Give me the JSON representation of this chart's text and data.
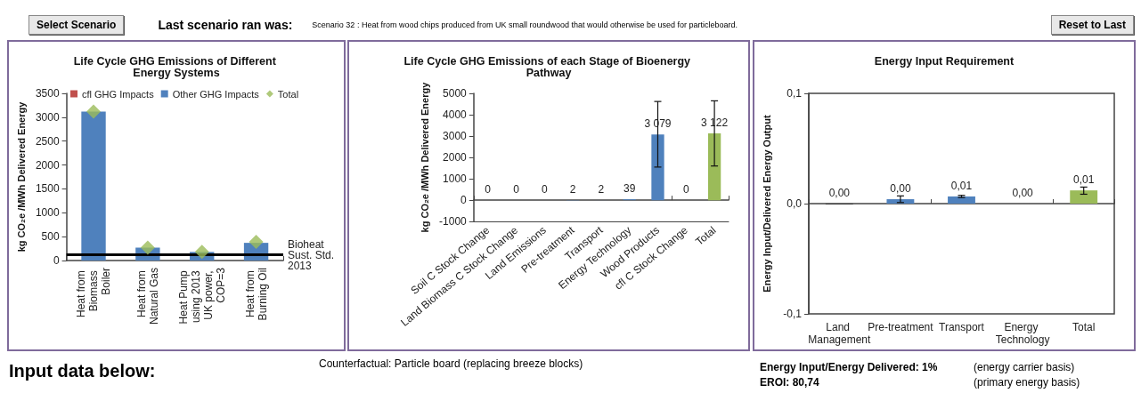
{
  "chart_data": [
    {
      "type": "other",
      "annotations": [
        "Select Scenario",
        "Last scenario ran was:",
        "Scenario 32 : Heat from wood chips produced from UK small roundwood that would otherwise be used for particleboard.",
        "Reset to Last"
      ]
    },
    {
      "type": "bar",
      "title": "Life Cycle GHG Emissions of Different Energy Systems",
      "ylabel": "kg CO₂e /MWh Delivered Energy",
      "categories": [
        "Heat from Biomass Boiler",
        "Heat from Natural Gas",
        "Heat Pump using 2013 UK power, COP=3",
        "Heat from Burning Oil"
      ],
      "stacked": true,
      "marker": "diamond",
      "legend": "top",
      "ylim": [
        0,
        3500
      ],
      "yticks": [
        0,
        500,
        1000,
        1500,
        2000,
        2500,
        3000,
        3500
      ],
      "ref_lines": [
        {
          "axis": "y",
          "value": 120,
          "label": "Bioheat Sust. Std. 2013",
          "color": "#000000"
        }
      ],
      "series": [
        {
          "name": "cfl GHG Impacts",
          "color": "#c0504d",
          "values": [
            0,
            0,
            0,
            0
          ]
        },
        {
          "name": "Other GHG Impacts",
          "color": "#4f81bd",
          "values": [
            3120,
            270,
            180,
            370
          ]
        },
        {
          "name": "Total",
          "type": "scatter",
          "color": "#9bbb59",
          "values": [
            3120,
            270,
            180,
            390
          ]
        }
      ]
    },
    {
      "type": "bar",
      "title": "Life Cycle GHG Emissions of each Stage of Bioenergy Pathway",
      "ylabel": "kg CO₂e /MWh Delivered Energy",
      "categories": [
        "Soil C Stock Change",
        "Land Biomass C Stock Change",
        "Land Emissions",
        "Pre-treatment",
        "Transport",
        "Energy Technology",
        "Wood Products",
        "cfl C Stock Change",
        "Total"
      ],
      "values": [
        0,
        0,
        0,
        2,
        2,
        39,
        3079,
        0,
        3122
      ],
      "colors": [
        "#4f81bd",
        "#4f81bd",
        "#4f81bd",
        "#4f81bd",
        "#4f81bd",
        "#4f81bd",
        "#4f81bd",
        "#4f81bd",
        "#9bbb59"
      ],
      "value_labels": [
        "0",
        "0",
        "0",
        "2",
        "2",
        "39",
        "3 079",
        "0",
        "3 122"
      ],
      "errors": [
        null,
        null,
        null,
        null,
        null,
        null,
        [
          1550,
          4620
        ],
        null,
        [
          1600,
          4650
        ]
      ],
      "ylim": [
        -1000,
        5000
      ],
      "yticks": [
        -1000,
        0,
        1000,
        2000,
        3000,
        4000,
        5000
      ]
    },
    {
      "type": "bar",
      "title": "Energy Input Requirement",
      "ylabel": "Energy Input/Delivered Energy Output",
      "categories": [
        "Land Management",
        "Pre-treatment",
        "Transport",
        "Energy Technology",
        "Total"
      ],
      "values": [
        -0.0005,
        0.004,
        0.0065,
        0,
        0.012
      ],
      "colors": [
        "#1f1f1f",
        "#4f81bd",
        "#4f81bd",
        "#4f81bd",
        "#9bbb59"
      ],
      "value_labels": [
        "0,00",
        "0,00",
        "0,01",
        "0,00",
        "0,01"
      ],
      "errors": [
        null,
        [
          0.001,
          0.007
        ],
        [
          0.0055,
          0.0075
        ],
        null,
        [
          0.0085,
          0.015
        ]
      ],
      "ylim": [
        -0.1,
        0.1
      ],
      "yticks": [
        {
          "value": -0.1,
          "label": "-0,1"
        },
        {
          "value": 0,
          "label": "0,0"
        },
        {
          "value": 0.1,
          "label": "0,1"
        }
      ]
    },
    {
      "type": "other",
      "annotations": [
        "Input data below:",
        "Counterfactual: Particle board (replacing breeze blocks)",
        "Energy Input/Energy Delivered: 1%",
        "(energy carrier basis)",
        "EROI: 80,74",
        "(primary energy basis)"
      ]
    }
  ]
}
